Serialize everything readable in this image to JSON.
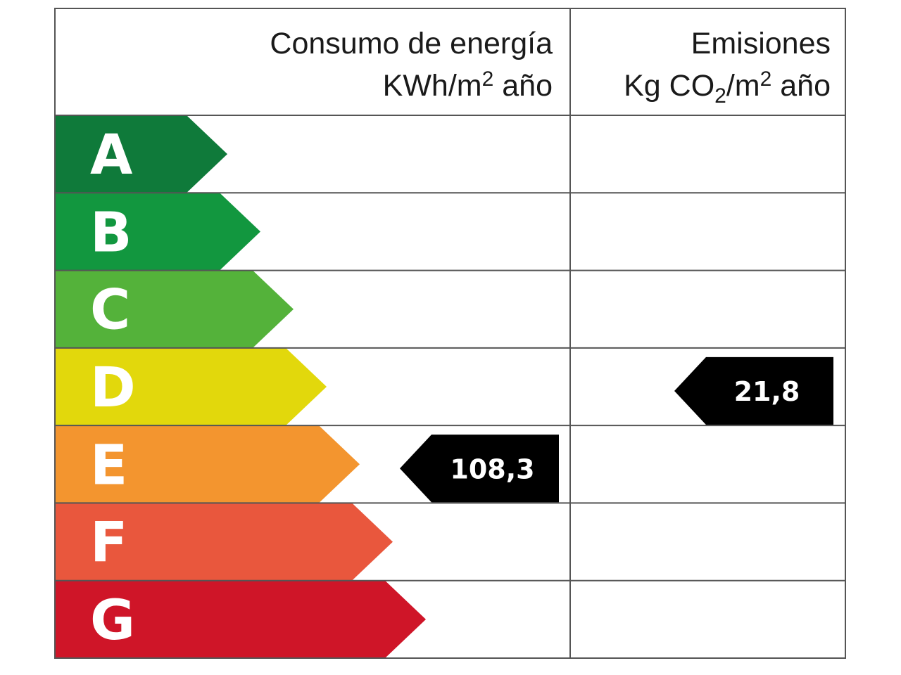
{
  "header": {
    "energy": {
      "title": "Consumo de energía",
      "unit_pre": "KWh/m",
      "unit_sup": "2",
      "unit_post": " año"
    },
    "emissions": {
      "title": "Emisiones",
      "unit_pre": "Kg CO",
      "unit_sub": "2",
      "unit_mid": "/m",
      "unit_sup": "2",
      "unit_post": " año"
    }
  },
  "ratings": [
    {
      "letter": "A",
      "color": "#0f7a3a"
    },
    {
      "letter": "B",
      "color": "#12973f"
    },
    {
      "letter": "C",
      "color": "#54b23a"
    },
    {
      "letter": "D",
      "color": "#e2d80c"
    },
    {
      "letter": "E",
      "color": "#f3952f"
    },
    {
      "letter": "F",
      "color": "#e9573d"
    },
    {
      "letter": "G",
      "color": "#cf1528"
    }
  ],
  "energy_value": {
    "rating_index": 4,
    "label": "108,3"
  },
  "emissions_value": {
    "rating_index": 3,
    "label": "21,8"
  },
  "indicator_color": "#000000"
}
